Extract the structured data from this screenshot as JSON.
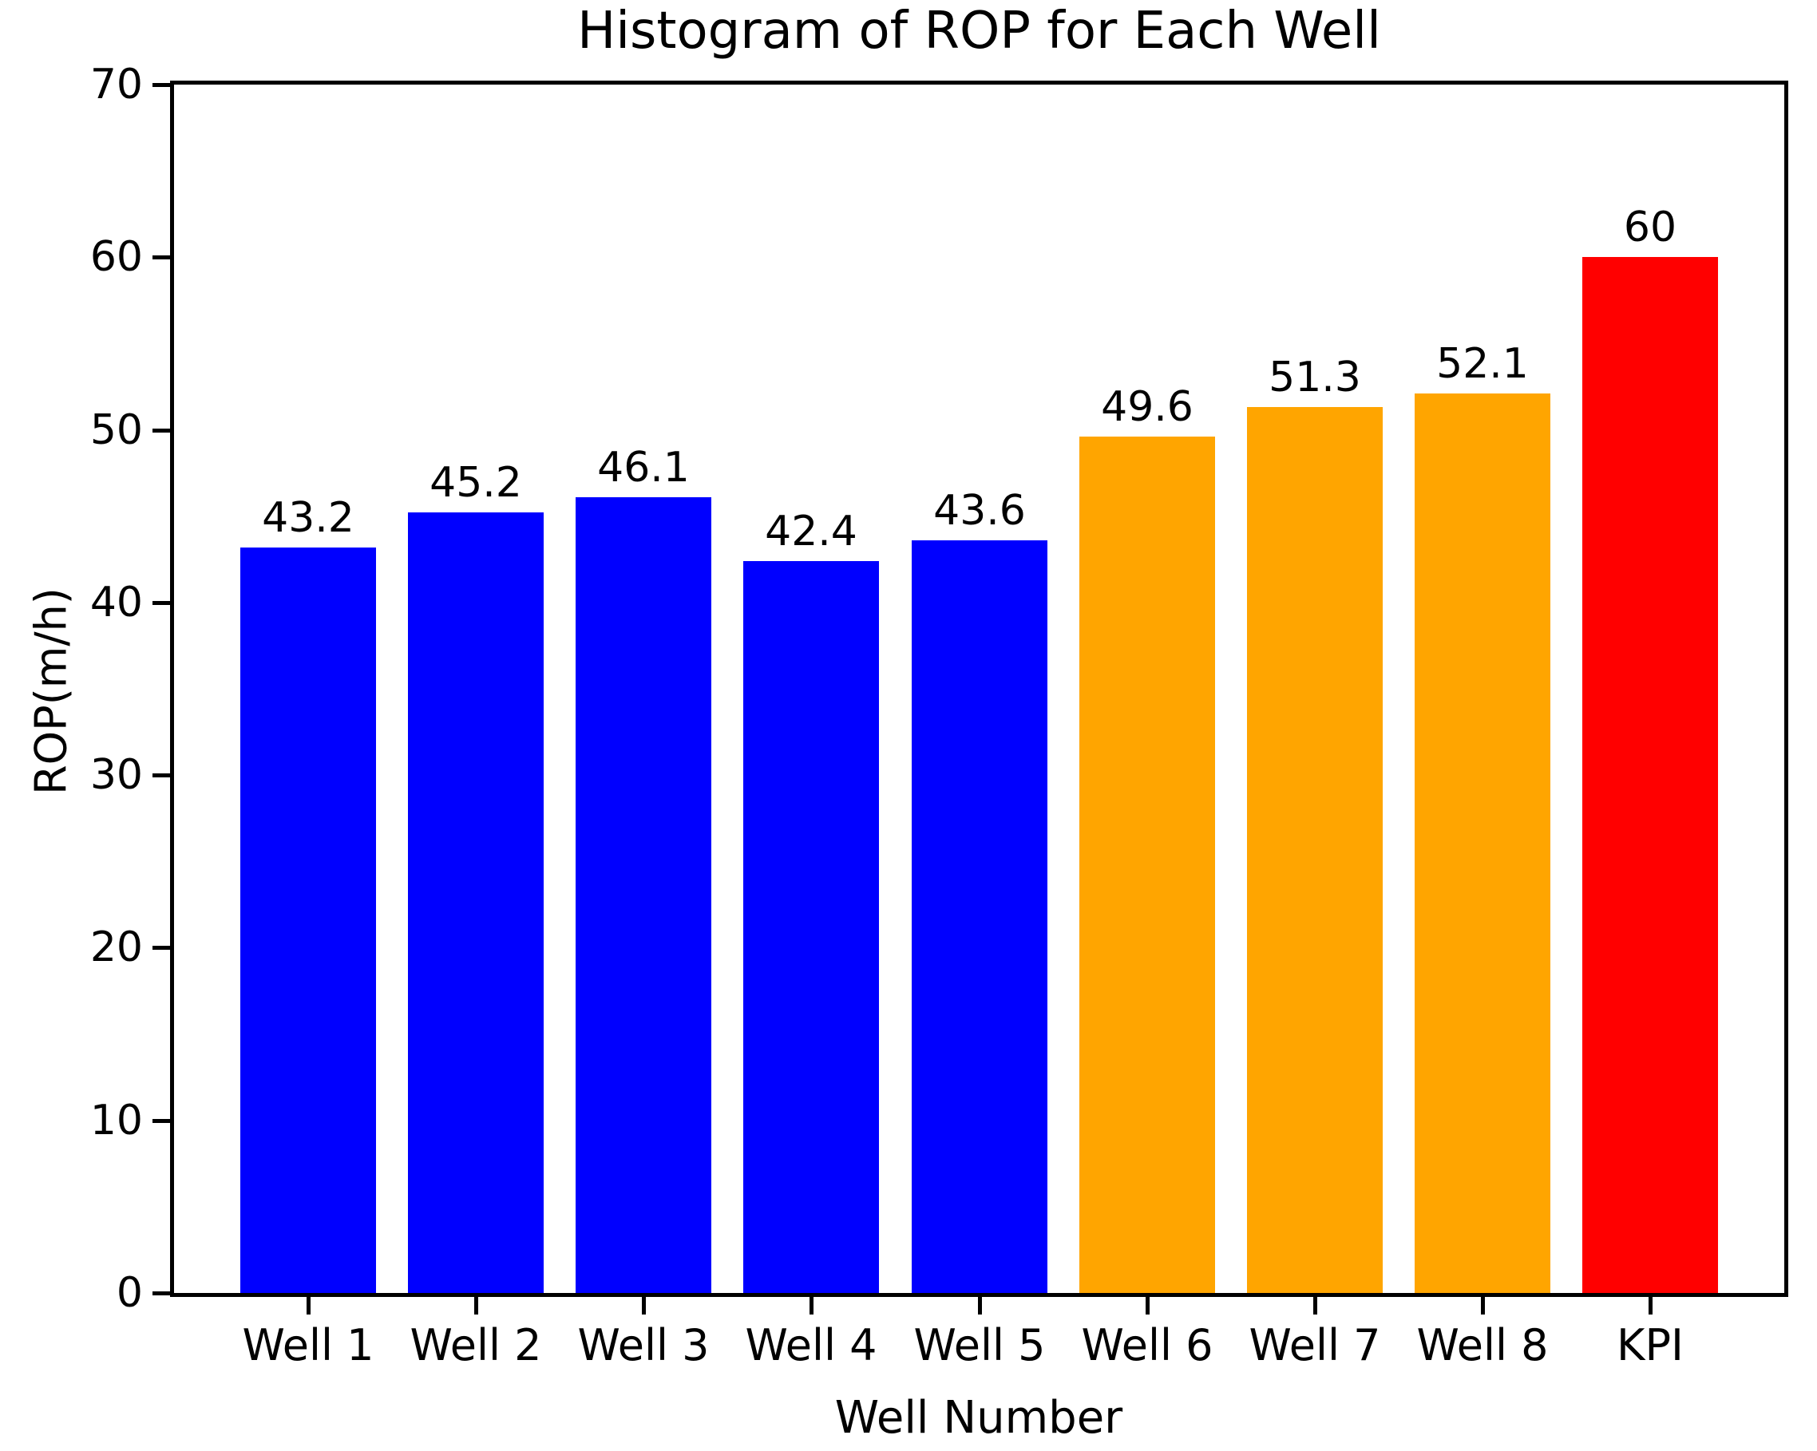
{
  "chart_data": {
    "type": "bar",
    "title": "Histogram of ROP for Each Well",
    "xlabel": "Well Number",
    "ylabel": "ROP(m/h)",
    "categories": [
      "Well 1",
      "Well 2",
      "Well 3",
      "Well 4",
      "Well 5",
      "Well 6",
      "Well 7",
      "Well 8",
      "KPI"
    ],
    "values": [
      43.2,
      45.2,
      46.1,
      42.4,
      43.6,
      49.6,
      51.3,
      52.1,
      60
    ],
    "bar_labels": [
      "43.2",
      "45.2",
      "46.1",
      "42.4",
      "43.6",
      "49.6",
      "51.3",
      "52.1",
      "60"
    ],
    "bar_colors": [
      "#0000ff",
      "#0000ff",
      "#0000ff",
      "#0000ff",
      "#0000ff",
      "#ffa500",
      "#ffa500",
      "#ffa500",
      "#ff0000"
    ],
    "ylim": [
      0,
      70
    ],
    "yticks": [
      0,
      10,
      20,
      30,
      40,
      50,
      60,
      70
    ],
    "grid": false,
    "legend_position": "none",
    "colors": {
      "well_group_1": "#0000ff",
      "well_group_2": "#ffa500",
      "kpi": "#ff0000",
      "axis": "#000000",
      "background": "#ffffff",
      "text": "#000000"
    }
  }
}
